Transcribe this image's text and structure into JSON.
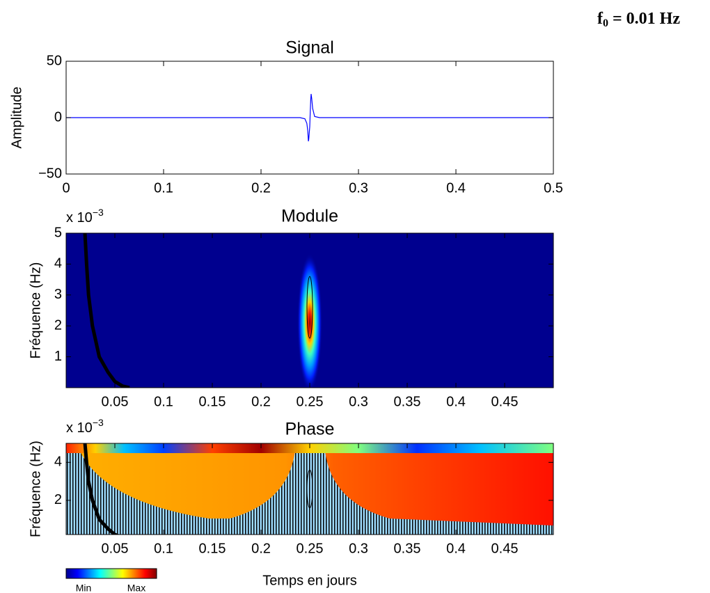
{
  "figure": {
    "label": "f",
    "subscript": "0",
    "text": " = 0.01 Hz"
  },
  "colorbar": {
    "colormap": "jet",
    "min_label": "Min",
    "max_label": "Max"
  },
  "chart_data": [
    {
      "type": "line",
      "title": "Signal",
      "ylabel": "Amplitude",
      "x": [
        0,
        0.24,
        0.245,
        0.247,
        0.248,
        0.2486,
        0.249,
        0.25,
        0.2505,
        0.251,
        0.2514,
        0.252,
        0.253,
        0.255,
        0.26,
        0.5
      ],
      "series": [
        {
          "color": "#0000ff",
          "values": [
            0,
            0,
            -1,
            -5,
            -12,
            -21,
            -19,
            -8,
            5,
            16,
            21,
            17,
            8,
            1,
            0,
            0
          ]
        }
      ],
      "xlim": [
        0,
        0.5
      ],
      "xticks": [
        0,
        0.1,
        0.2,
        0.3,
        0.4,
        0.5
      ],
      "ylim": [
        -50,
        50
      ],
      "yticks": [
        {
          "value": -50,
          "label": "−50"
        },
        0,
        50
      ]
    },
    {
      "type": "heatmap",
      "image": "module",
      "title": "Module",
      "ylabel": "Fréquence (Hz)",
      "y_multiplier": {
        "base": "x 10",
        "exponent": "−3"
      },
      "series": [
        {
          "color": "#000000",
          "x": [
            0.0193,
            0.021,
            0.023,
            0.027,
            0.034,
            0.043,
            0.05,
            0.058,
            0.065
          ],
          "values": [
            0.005,
            0.004,
            0.003,
            0.002,
            0.001,
            0.0005,
            0.0002,
            5e-05,
            0
          ]
        }
      ],
      "xlim": [
        0,
        0.5
      ],
      "xticks": [
        0.05,
        0.1,
        0.15,
        0.2,
        0.25,
        0.3,
        0.35,
        0.4,
        0.45
      ],
      "ylim": [
        0,
        0.005
      ],
      "yticks": [
        {
          "value": 0.001,
          "label": "1"
        },
        {
          "value": 0.002,
          "label": "2"
        },
        {
          "value": 0.003,
          "label": "3"
        },
        {
          "value": 0.004,
          "label": "4"
        },
        {
          "value": 0.005,
          "label": "5"
        }
      ]
    },
    {
      "type": "heatmap",
      "image": "phase",
      "title": "Phase",
      "ylabel": "Fréquence (Hz)",
      "xlabel": "Temps en jours",
      "y_multiplier": {
        "base": "x 10",
        "exponent": "−3"
      },
      "series": [
        {
          "color": "#000000",
          "x": [
            0.0193,
            0.021,
            0.023,
            0.027,
            0.034,
            0.043,
            0.05,
            0.058,
            0.065
          ],
          "values": [
            0.005,
            0.004,
            0.003,
            0.002,
            0.001,
            0.0005,
            0.0002,
            5e-05,
            0
          ]
        }
      ],
      "xlim": [
        0,
        0.5
      ],
      "xticks": [
        0.05,
        0.1,
        0.15,
        0.2,
        0.25,
        0.3,
        0.35,
        0.4,
        0.45
      ],
      "ylim": [
        0.0002,
        0.005
      ],
      "yticks": [
        {
          "value": 0.002,
          "label": "2"
        },
        {
          "value": 0.004,
          "label": "4"
        }
      ]
    }
  ]
}
